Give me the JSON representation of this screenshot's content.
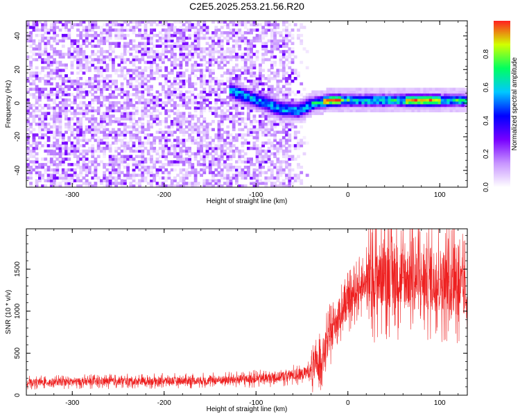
{
  "title": "C2E5.2025.253.21.56.R20",
  "chart_data": [
    {
      "type": "heatmap",
      "title": "C2E5.2025.253.21.56.R20",
      "xlabel": "Height of straight line (km)",
      "ylabel": "Frequency (Hz)",
      "xlim": [
        -350,
        130
      ],
      "ylim": [
        -50,
        49
      ],
      "xticks": [
        -300,
        -200,
        -100,
        0,
        100
      ],
      "yticks": [
        -40,
        -20,
        0,
        20,
        40
      ],
      "colorbar": {
        "label": "Normalized spectral amplitude",
        "range": [
          0.0,
          1.0
        ],
        "ticks": [
          "0.0",
          "0.2",
          "0.4",
          "0.6",
          "0.8"
        ],
        "colors": [
          "#ffffff",
          "#c896ff",
          "#7800ff",
          "#0000ff",
          "#00c8ff",
          "#00ff60",
          "#d2ff00",
          "#ff2020"
        ]
      },
      "carrier_track_hz": [
        [
          -130,
          7
        ],
        [
          -100,
          1
        ],
        [
          -75,
          -4
        ],
        [
          -55,
          -5
        ],
        [
          -40,
          -1
        ],
        [
          -20,
          1
        ],
        [
          0,
          1
        ],
        [
          50,
          1
        ],
        [
          100,
          1
        ],
        [
          130,
          1
        ]
      ],
      "noise_extent_km": [
        -350,
        -50
      ]
    },
    {
      "type": "line",
      "xlabel": "Height of straight line (km)",
      "ylabel": "SNR (10 * v/v)",
      "xlim": [
        -350,
        130
      ],
      "ylim": [
        0,
        1980
      ],
      "xticks": [
        -300,
        -200,
        -100,
        0,
        100
      ],
      "yticks": [
        0,
        500,
        1000,
        1500
      ],
      "series_color": "#ee2020",
      "series": [
        {
          "name": "SNR",
          "x": [
            -350,
            -300,
            -250,
            -200,
            -150,
            -100,
            -80,
            -60,
            -50,
            -40,
            -30,
            -20,
            -10,
            0,
            10,
            20,
            30,
            40,
            60,
            80,
            100,
            110,
            115,
            120,
            130
          ],
          "values": [
            150,
            160,
            165,
            170,
            175,
            195,
            210,
            240,
            250,
            300,
            400,
            700,
            950,
            1100,
            1250,
            1350,
            1400,
            1450,
            1400,
            1380,
            1380,
            1350,
            1500,
            1300,
            1200
          ]
        }
      ]
    }
  ]
}
